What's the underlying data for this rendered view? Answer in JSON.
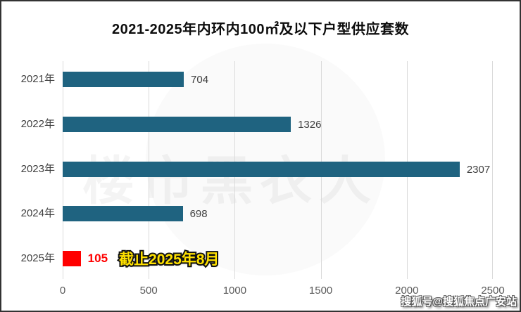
{
  "title": "2021-2025年内环内100㎡及以下户型供应套数",
  "chart_data": {
    "type": "bar",
    "orientation": "horizontal",
    "title": "2021-2025年内环内100㎡及以下户型供应套数",
    "categories": [
      "2021年",
      "2022年",
      "2023年",
      "2024年",
      "2025年"
    ],
    "values": [
      704,
      1326,
      2307,
      698,
      105
    ],
    "x_ticks": [
      0,
      500,
      1000,
      1500,
      2000,
      2500
    ],
    "xlim": [
      0,
      2500
    ],
    "grid": "vertical-only",
    "legend": "none",
    "highlight_index": 4,
    "annotation": {
      "text": "截止2025年8月",
      "row_index": 4
    },
    "colors": {
      "bar": "#1F6380",
      "highlight_bar": "#FF0000",
      "highlight_value_text": "#FF0000",
      "annotation_text": "#FFE100",
      "annotation_outline": "#141414",
      "value_label": "#404040",
      "axis_label": "#595959",
      "gridline": "#DADADA"
    }
  },
  "watermarks": {
    "center_text": "楼市黑衣人",
    "corner_text": "搜狐号@搜狐焦点广安站"
  }
}
